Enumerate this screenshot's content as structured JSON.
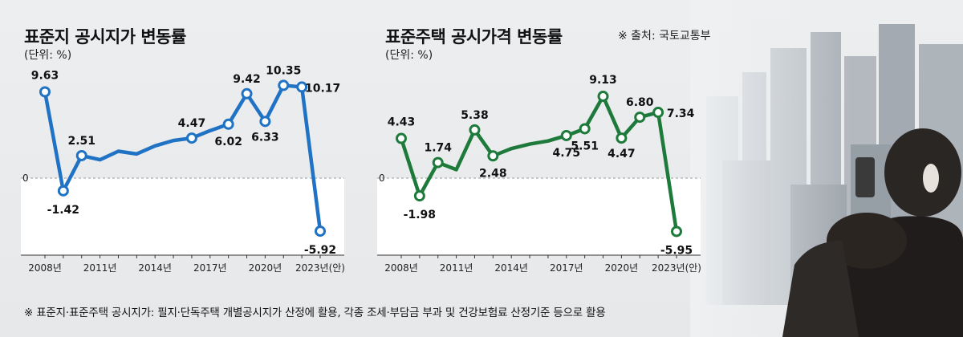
{
  "footnote": "※ 표준지·표준주택 공시지가:  필지·단독주택 개별공시지가 산정에 활용, 각종 조세·부담금 부과 및 건강보험료 산정기준 등으로 활용",
  "colors": {
    "land": "#1f72c4",
    "house": "#1d7a3a",
    "neg_area": "#ffffff"
  },
  "chart_data": [
    {
      "type": "line",
      "title": "표준지 공시지가 변동률",
      "unit": "(단위: %)",
      "source": "",
      "x": [
        "2008",
        "2009",
        "2010",
        "2011",
        "2012",
        "2013",
        "2014",
        "2015",
        "2016",
        "2017",
        "2018",
        "2019",
        "2020",
        "2021",
        "2022",
        "2023"
      ],
      "values": [
        9.63,
        -1.42,
        2.51,
        2.05,
        3.0,
        2.7,
        3.6,
        4.2,
        4.47,
        5.3,
        6.02,
        9.42,
        6.33,
        10.35,
        10.17,
        -5.92
      ],
      "labeled": {
        "0": "9.63",
        "1": "-1.42",
        "2": "2.51",
        "8": "4.47",
        "10": "6.02",
        "11": "9.42",
        "12": "6.33",
        "13": "10.35",
        "14": "10.17",
        "15": "-5.92"
      },
      "markers": [
        0,
        1,
        2,
        8,
        10,
        11,
        12,
        13,
        14,
        15
      ],
      "ticks": [
        {
          "i": 0,
          "label": "2008년"
        },
        {
          "i": 3,
          "label": "2011년"
        },
        {
          "i": 6,
          "label": "2014년"
        },
        {
          "i": 9,
          "label": "2017년"
        },
        {
          "i": 12,
          "label": "2020년"
        },
        {
          "i": 15,
          "label": "2023년(안)"
        }
      ],
      "zero_label": "0",
      "ylim": [
        -7.5,
        12
      ]
    },
    {
      "type": "line",
      "title": "표준주택 공시가격 변동률",
      "unit": "(단위: %)",
      "source": "※ 출처: 국토교통부",
      "x": [
        "2008",
        "2009",
        "2010",
        "2011",
        "2012",
        "2013",
        "2014",
        "2015",
        "2016",
        "2017",
        "2018",
        "2019",
        "2020",
        "2021",
        "2022",
        "2023"
      ],
      "values": [
        4.43,
        -1.98,
        1.74,
        0.95,
        5.38,
        2.48,
        3.3,
        3.8,
        4.15,
        4.75,
        5.51,
        9.13,
        4.47,
        6.8,
        7.34,
        -5.95
      ],
      "labeled": {
        "0": "4.43",
        "1": "-1.98",
        "2": "1.74",
        "4": "5.38",
        "5": "2.48",
        "9": "4.75",
        "10": "5.51",
        "11": "9.13",
        "12": "4.47",
        "13": "6.80",
        "14": "7.34",
        "15": "-5.95"
      },
      "markers": [
        0,
        1,
        2,
        4,
        5,
        9,
        10,
        11,
        12,
        13,
        14,
        15
      ],
      "ticks": [
        {
          "i": 0,
          "label": "2008년"
        },
        {
          "i": 3,
          "label": "2011년"
        },
        {
          "i": 6,
          "label": "2014년"
        },
        {
          "i": 9,
          "label": "2017년"
        },
        {
          "i": 12,
          "label": "2020년"
        },
        {
          "i": 15,
          "label": "2023년(안)"
        }
      ],
      "zero_label": "0",
      "ylim": [
        -7.5,
        12
      ]
    }
  ]
}
